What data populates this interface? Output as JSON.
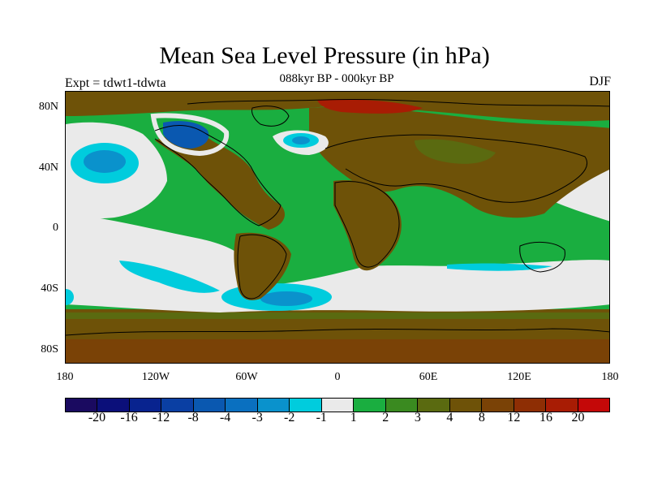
{
  "title": "Mean Sea Level Pressure (in hPa)",
  "subtitle": "088kyr BP - 000kyr BP",
  "left_label": "Expt = tdwt1-tdwta",
  "right_label": "DJF",
  "axes": {
    "y_ticks": [
      "80N",
      "40N",
      "0",
      "40S",
      "80S"
    ],
    "x_ticks": [
      "180",
      "120W",
      "60W",
      "0",
      "60E",
      "120E",
      "180"
    ]
  },
  "colorbar": {
    "colors": [
      "#1a0a60",
      "#0b0f7a",
      "#08238f",
      "#0a3fa3",
      "#0a58b0",
      "#0a70c0",
      "#0a92cc",
      "#00ccdd",
      "#eaeaea",
      "#1aae40",
      "#3a8a20",
      "#5a6a10",
      "#6e5208",
      "#7a4206",
      "#8e2e04",
      "#a81c04",
      "#c40808"
    ],
    "labels": [
      "-20",
      "-16",
      "-12",
      "-8",
      "-4",
      "-3",
      "-2",
      "-1",
      "1",
      "2",
      "3",
      "4",
      "8",
      "12",
      "16",
      "20"
    ]
  },
  "map_colors": {
    "white": "#eaeaea",
    "cyan": "#00ccdd",
    "lightblue": "#0a92cc",
    "blue": "#0a58b0",
    "green": "#1aae40",
    "olive": "#5a6a10",
    "brown": "#6e5208",
    "darkbrown": "#7a4206",
    "red": "#a81c04"
  }
}
